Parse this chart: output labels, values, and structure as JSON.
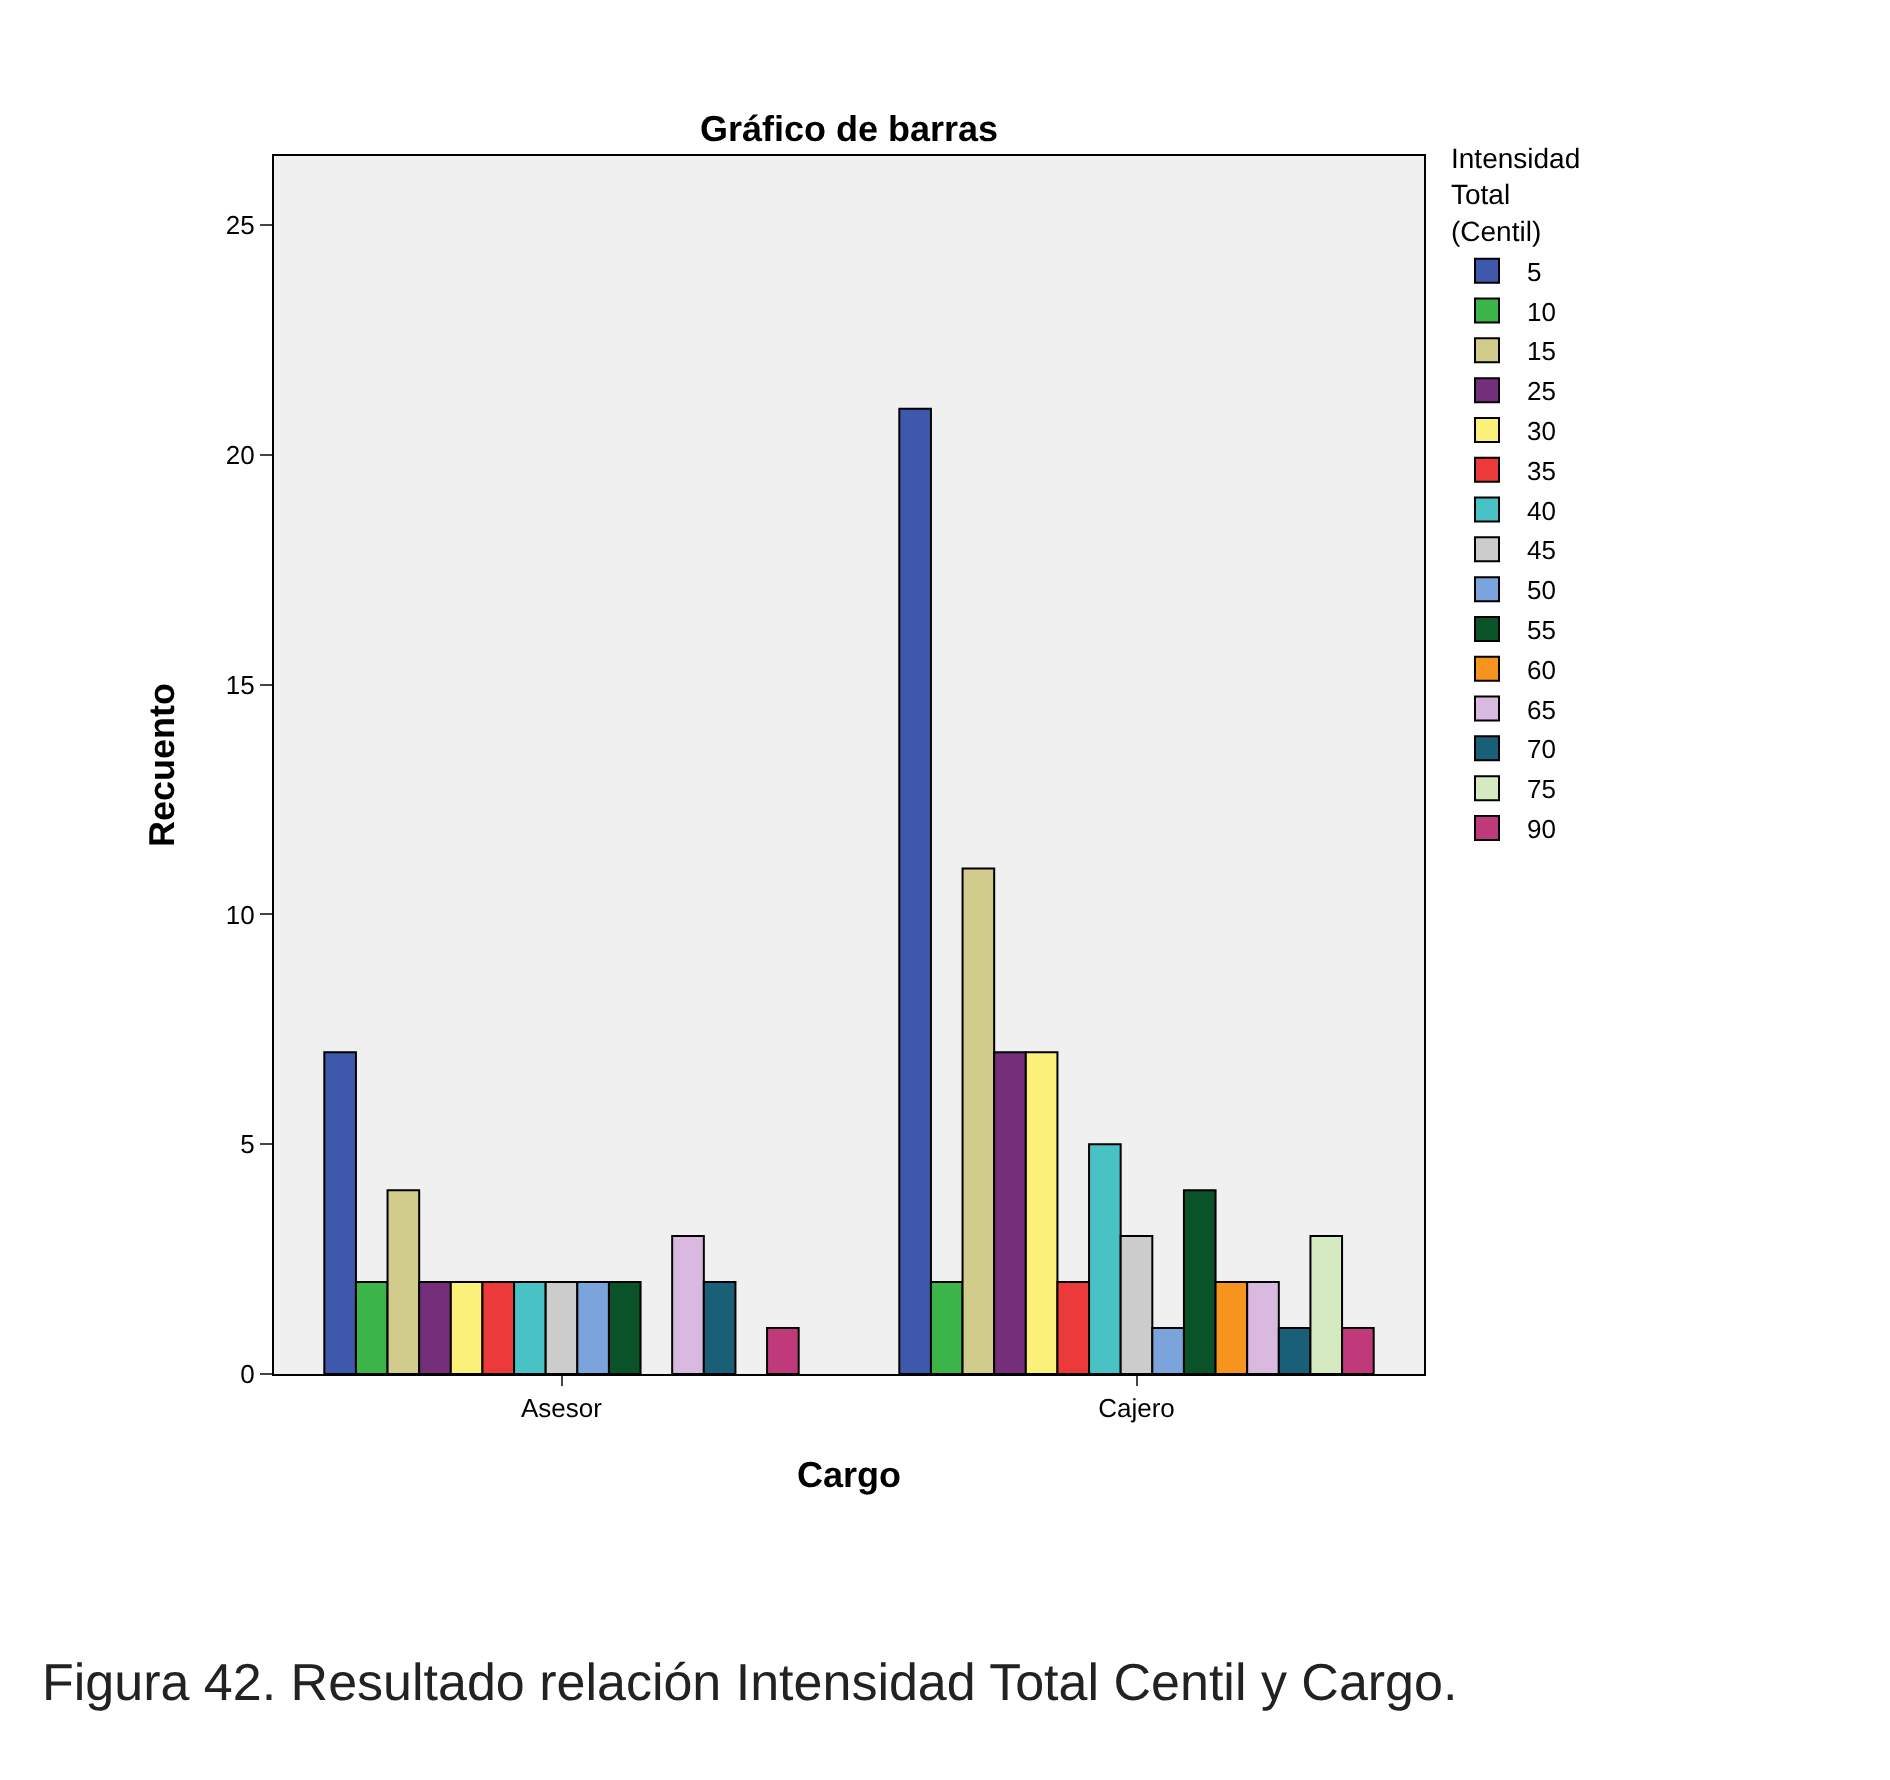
{
  "chart_data": {
    "type": "bar",
    "title": "Gráfico de barras",
    "xlabel": "Cargo",
    "ylabel": "Recuento",
    "legend_title": "Intensidad Total (Centil)",
    "categories": [
      "Asesor",
      "Cajero"
    ],
    "series": [
      {
        "name": "5",
        "color": "#3e58ac",
        "values": [
          7,
          21
        ]
      },
      {
        "name": "10",
        "color": "#3bb44a",
        "values": [
          2,
          2
        ]
      },
      {
        "name": "15",
        "color": "#d2cc8c",
        "values": [
          4,
          11
        ]
      },
      {
        "name": "25",
        "color": "#742e7a",
        "values": [
          2,
          7
        ]
      },
      {
        "name": "30",
        "color": "#fbf17a",
        "values": [
          2,
          7
        ]
      },
      {
        "name": "35",
        "color": "#ec3a3a",
        "values": [
          2,
          2
        ]
      },
      {
        "name": "40",
        "color": "#48c2c5",
        "values": [
          2,
          5
        ]
      },
      {
        "name": "45",
        "color": "#cccccc",
        "values": [
          2,
          3
        ]
      },
      {
        "name": "50",
        "color": "#7ba4dd",
        "values": [
          2,
          1
        ]
      },
      {
        "name": "55",
        "color": "#0a5228",
        "values": [
          2,
          4
        ]
      },
      {
        "name": "60",
        "color": "#f7941d",
        "values": [
          null,
          2
        ]
      },
      {
        "name": "65",
        "color": "#d9b9e0",
        "values": [
          3,
          2
        ]
      },
      {
        "name": "70",
        "color": "#1a5f78",
        "values": [
          2,
          1
        ]
      },
      {
        "name": "75",
        "color": "#d5eac0",
        "values": [
          null,
          3
        ]
      },
      {
        "name": "90",
        "color": "#c0397b",
        "values": [
          1,
          1
        ]
      }
    ],
    "ylim": [
      0,
      26.5
    ],
    "yticks": [
      0,
      5,
      10,
      15,
      20,
      25
    ],
    "grid": false,
    "legend": "right",
    "annotations": [
      "Figura 42. Resultado relación Intensidad Total Centil y Cargo."
    ]
  }
}
